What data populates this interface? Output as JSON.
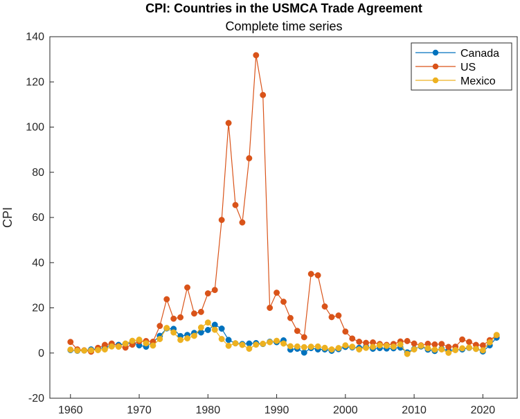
{
  "chart_data": {
    "type": "line",
    "title": "CPI: Countries in the USMCA Trade Agreement",
    "subtitle": "Complete time series",
    "xlabel": "",
    "ylabel": "CPI",
    "xlim": [
      1957,
      2025
    ],
    "ylim": [
      -20,
      140
    ],
    "xticks": [
      "1960",
      "1970",
      "1980",
      "1990",
      "2000",
      "2010",
      "2020"
    ],
    "yticks": [
      "-20",
      "0",
      "20",
      "40",
      "60",
      "80",
      "100",
      "120",
      "140"
    ],
    "legend_position": "top-right",
    "x": [
      1960,
      1961,
      1962,
      1963,
      1964,
      1965,
      1966,
      1967,
      1968,
      1969,
      1970,
      1971,
      1972,
      1973,
      1974,
      1975,
      1976,
      1977,
      1978,
      1979,
      1980,
      1981,
      1982,
      1983,
      1984,
      1985,
      1986,
      1987,
      1988,
      1989,
      1990,
      1991,
      1992,
      1993,
      1994,
      1995,
      1996,
      1997,
      1998,
      1999,
      2000,
      2001,
      2002,
      2003,
      2004,
      2005,
      2006,
      2007,
      2008,
      2009,
      2010,
      2011,
      2012,
      2013,
      2014,
      2015,
      2016,
      2017,
      2018,
      2019,
      2020,
      2021,
      2022
    ],
    "series": [
      {
        "name": "Canada",
        "color": "#0072BD",
        "values": [
          1.3,
          1.0,
          1.1,
          1.6,
          1.9,
          2.4,
          3.7,
          3.6,
          4.1,
          4.5,
          3.4,
          2.8,
          4.8,
          7.6,
          10.9,
          10.7,
          7.5,
          8.0,
          8.9,
          9.1,
          10.2,
          12.5,
          10.8,
          5.8,
          4.3,
          4.0,
          4.2,
          4.4,
          4.0,
          5.0,
          4.8,
          5.6,
          1.5,
          1.9,
          0.2,
          2.2,
          1.6,
          1.6,
          1.0,
          1.7,
          2.7,
          2.5,
          2.3,
          2.8,
          1.9,
          2.2,
          2.0,
          2.1,
          2.4,
          0.3,
          1.8,
          2.9,
          1.5,
          0.9,
          1.9,
          1.1,
          1.4,
          1.6,
          2.3,
          1.9,
          0.7,
          3.4,
          6.8
        ]
      },
      {
        "name": "US",
        "color": "#D95319",
        "values": [
          4.9,
          1.6,
          1.2,
          0.6,
          2.3,
          3.6,
          4.2,
          3.0,
          2.4,
          3.7,
          5.2,
          5.3,
          5.0,
          12.0,
          23.8,
          15.2,
          15.8,
          29.0,
          17.5,
          18.2,
          26.4,
          27.9,
          58.9,
          101.8,
          65.5,
          57.8,
          86.2,
          131.8,
          114.2,
          20.0,
          26.7,
          22.7,
          15.5,
          9.8,
          7.0,
          35.0,
          34.4,
          20.6,
          15.9,
          16.6,
          9.5,
          6.4,
          5.0,
          4.5,
          4.7,
          4.0,
          3.6,
          4.0,
          5.1,
          5.3,
          4.2,
          3.4,
          4.1,
          3.8,
          4.0,
          2.7,
          2.8,
          6.0,
          4.9,
          3.6,
          3.4,
          5.7,
          7.9
        ]
      },
      {
        "name": "Mexico",
        "color": "#EDB120",
        "values": [
          1.5,
          1.1,
          1.1,
          1.2,
          1.3,
          1.6,
          2.9,
          2.8,
          4.2,
          5.4,
          5.9,
          4.3,
          3.3,
          6.2,
          11.1,
          9.1,
          5.8,
          6.5,
          7.6,
          11.3,
          13.5,
          10.3,
          6.2,
          3.2,
          4.3,
          3.6,
          1.9,
          3.7,
          4.1,
          4.8,
          5.4,
          4.2,
          3.0,
          2.9,
          2.6,
          2.8,
          2.9,
          2.3,
          1.6,
          2.2,
          3.4,
          2.8,
          1.6,
          2.3,
          2.7,
          3.4,
          3.2,
          2.8,
          3.8,
          -0.4,
          1.6,
          3.2,
          2.1,
          1.5,
          1.6,
          0.1,
          1.3,
          2.1,
          2.4,
          1.8,
          1.2,
          4.7,
          8.0
        ]
      }
    ]
  }
}
